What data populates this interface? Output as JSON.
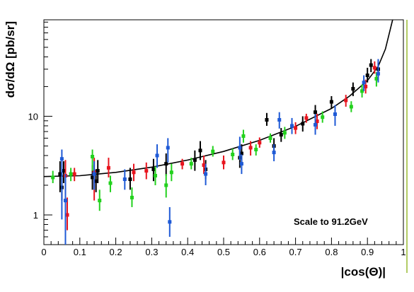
{
  "chart_data": {
    "type": "scatter",
    "xlabel": "|cos(Θ)|",
    "ylabel": "dσ/dΩ [pb/sr]",
    "annotation": "Scale to 91.2GeV",
    "xlim": [
      0,
      1
    ],
    "ylim": [
      0.5,
      95
    ],
    "y_scale": "log",
    "grid": false,
    "x_ticks": [
      "0",
      "0.1",
      "0.2",
      "0.3",
      "0.4",
      "0.5",
      "0.6",
      "0.7",
      "0.8",
      "0.9",
      "1"
    ],
    "x_tick_values": [
      0,
      0.1,
      0.2,
      0.3,
      0.4,
      0.5,
      0.6,
      0.7,
      0.8,
      0.9,
      1.0
    ],
    "y_ticks": [
      "1",
      "10"
    ],
    "y_tick_values": [
      1,
      10
    ],
    "colors": {
      "black": "#000000",
      "red": "#e8141e",
      "green": "#22d11d",
      "blue": "#1f5ad6",
      "curve": "#000000",
      "right_edge": "#99bb33"
    },
    "curve": {
      "description_points_x": [
        0.0,
        0.1,
        0.2,
        0.3,
        0.4,
        0.5,
        0.6,
        0.7,
        0.8,
        0.85,
        0.9,
        0.93,
        0.95,
        0.97
      ],
      "description_points_y": [
        2.45,
        2.5,
        2.7,
        3.05,
        3.6,
        4.4,
        5.7,
        7.9,
        12.0,
        16.0,
        23.0,
        32.0,
        48.0,
        95.0
      ]
    },
    "series": [
      {
        "color": "black",
        "points": [
          {
            "x": 0.045,
            "y": 2.6,
            "lo": 1.7,
            "hi": 3.5
          },
          {
            "x": 0.05,
            "y": 1.9,
            "lo": 1.4,
            "hi": 2.6
          },
          {
            "x": 0.055,
            "y": 2.8,
            "lo": 2.1,
            "hi": 3.5
          },
          {
            "x": 0.135,
            "y": 2.4,
            "lo": 1.8,
            "hi": 3.2
          },
          {
            "x": 0.145,
            "y": 2.2,
            "lo": 1.7,
            "hi": 2.9
          },
          {
            "x": 0.15,
            "y": 2.8,
            "lo": 2.1,
            "hi": 3.6
          },
          {
            "x": 0.24,
            "y": 2.3,
            "lo": 1.8,
            "hi": 3.0
          },
          {
            "x": 0.305,
            "y": 2.9,
            "lo": 2.2,
            "hi": 3.7
          },
          {
            "x": 0.34,
            "y": 3.3,
            "lo": 2.5,
            "hi": 4.2
          },
          {
            "x": 0.42,
            "y": 3.6,
            "lo": 2.8,
            "hi": 4.5
          },
          {
            "x": 0.435,
            "y": 4.5,
            "lo": 3.6,
            "hi": 5.6
          },
          {
            "x": 0.45,
            "y": 2.9,
            "lo": 2.3,
            "hi": 3.6
          },
          {
            "x": 0.545,
            "y": 3.8,
            "lo": 3.0,
            "hi": 4.8
          },
          {
            "x": 0.55,
            "y": 4.2,
            "lo": 3.2,
            "hi": 5.2
          },
          {
            "x": 0.62,
            "y": 9.2,
            "lo": 8.0,
            "hi": 10.8
          },
          {
            "x": 0.64,
            "y": 5.0,
            "lo": 4.2,
            "hi": 6.0
          },
          {
            "x": 0.66,
            "y": 6.5,
            "lo": 5.5,
            "hi": 7.6
          },
          {
            "x": 0.72,
            "y": 8.4,
            "lo": 7.0,
            "hi": 10.0
          },
          {
            "x": 0.755,
            "y": 11.0,
            "lo": 9.2,
            "hi": 13.0
          },
          {
            "x": 0.8,
            "y": 14.0,
            "lo": 12.0,
            "hi": 16.0
          },
          {
            "x": 0.86,
            "y": 19.0,
            "lo": 16.0,
            "hi": 22.0
          },
          {
            "x": 0.9,
            "y": 26.0,
            "lo": 22.0,
            "hi": 31.0
          },
          {
            "x": 0.91,
            "y": 33.0,
            "lo": 28.0,
            "hi": 38.0
          },
          {
            "x": 0.93,
            "y": 30.0,
            "lo": 25.0,
            "hi": 35.0
          }
        ]
      },
      {
        "color": "red",
        "points": [
          {
            "x": 0.06,
            "y": 2.5,
            "lo": 1.6,
            "hi": 3.6
          },
          {
            "x": 0.065,
            "y": 1.0,
            "lo": 0.7,
            "hi": 1.5
          },
          {
            "x": 0.085,
            "y": 2.6,
            "lo": 2.2,
            "hi": 3.0
          },
          {
            "x": 0.14,
            "y": 2.7,
            "lo": 1.4,
            "hi": 3.8
          },
          {
            "x": 0.18,
            "y": 3.0,
            "lo": 2.4,
            "hi": 3.8
          },
          {
            "x": 0.25,
            "y": 2.7,
            "lo": 2.2,
            "hi": 3.3
          },
          {
            "x": 0.285,
            "y": 2.8,
            "lo": 2.3,
            "hi": 3.4
          },
          {
            "x": 0.385,
            "y": 3.3,
            "lo": 2.9,
            "hi": 3.7
          },
          {
            "x": 0.445,
            "y": 3.2,
            "lo": 2.6,
            "hi": 4.0
          },
          {
            "x": 0.5,
            "y": 3.4,
            "lo": 2.9,
            "hi": 4.0
          },
          {
            "x": 0.575,
            "y": 4.8,
            "lo": 4.0,
            "hi": 5.6
          },
          {
            "x": 0.6,
            "y": 5.4,
            "lo": 4.8,
            "hi": 6.1
          },
          {
            "x": 0.7,
            "y": 7.6,
            "lo": 6.6,
            "hi": 8.7
          },
          {
            "x": 0.73,
            "y": 9.6,
            "lo": 8.6,
            "hi": 10.6
          },
          {
            "x": 0.76,
            "y": 8.9,
            "lo": 7.4,
            "hi": 10.6
          },
          {
            "x": 0.84,
            "y": 14.5,
            "lo": 12.5,
            "hi": 16.5
          },
          {
            "x": 0.895,
            "y": 20.0,
            "lo": 17.0,
            "hi": 23.5
          },
          {
            "x": 0.92,
            "y": 31.0,
            "lo": 27.0,
            "hi": 36.0
          }
        ]
      },
      {
        "color": "green",
        "points": [
          {
            "x": 0.025,
            "y": 2.4,
            "lo": 2.1,
            "hi": 2.8
          },
          {
            "x": 0.075,
            "y": 2.6,
            "lo": 2.2,
            "hi": 3.0
          },
          {
            "x": 0.135,
            "y": 3.9,
            "lo": 2.8,
            "hi": 4.6
          },
          {
            "x": 0.155,
            "y": 1.4,
            "lo": 1.1,
            "hi": 1.8
          },
          {
            "x": 0.185,
            "y": 2.1,
            "lo": 1.7,
            "hi": 2.5
          },
          {
            "x": 0.245,
            "y": 1.5,
            "lo": 1.2,
            "hi": 1.9
          },
          {
            "x": 0.31,
            "y": 2.5,
            "lo": 2.0,
            "hi": 3.1
          },
          {
            "x": 0.34,
            "y": 2.0,
            "lo": 1.5,
            "hi": 2.6
          },
          {
            "x": 0.355,
            "y": 2.7,
            "lo": 2.2,
            "hi": 3.3
          },
          {
            "x": 0.41,
            "y": 3.3,
            "lo": 2.9,
            "hi": 3.8
          },
          {
            "x": 0.47,
            "y": 4.4,
            "lo": 3.9,
            "hi": 5.0
          },
          {
            "x": 0.525,
            "y": 4.1,
            "lo": 3.6,
            "hi": 4.7
          },
          {
            "x": 0.555,
            "y": 6.3,
            "lo": 5.4,
            "hi": 7.3
          },
          {
            "x": 0.59,
            "y": 4.6,
            "lo": 4.0,
            "hi": 5.2
          },
          {
            "x": 0.63,
            "y": 6.0,
            "lo": 5.4,
            "hi": 6.7
          },
          {
            "x": 0.67,
            "y": 6.8,
            "lo": 5.9,
            "hi": 7.8
          },
          {
            "x": 0.775,
            "y": 9.8,
            "lo": 8.6,
            "hi": 11.2
          },
          {
            "x": 0.855,
            "y": 12.5,
            "lo": 11.0,
            "hi": 14.2
          },
          {
            "x": 0.885,
            "y": 18.0,
            "lo": 15.5,
            "hi": 21.0
          },
          {
            "x": 0.925,
            "y": 24.0,
            "lo": 20.0,
            "hi": 28.0
          }
        ]
      },
      {
        "color": "blue",
        "points": [
          {
            "x": 0.05,
            "y": 3.7,
            "lo": 0.9,
            "hi": 4.6
          },
          {
            "x": 0.06,
            "y": 1.4,
            "lo": 0.5,
            "hi": 2.6
          },
          {
            "x": 0.14,
            "y": 2.6,
            "lo": 1.8,
            "hi": 3.5
          },
          {
            "x": 0.225,
            "y": 2.3,
            "lo": 1.8,
            "hi": 2.9
          },
          {
            "x": 0.315,
            "y": 4.0,
            "lo": 3.0,
            "hi": 5.2
          },
          {
            "x": 0.345,
            "y": 4.8,
            "lo": 3.4,
            "hi": 6.0
          },
          {
            "x": 0.35,
            "y": 0.85,
            "lo": 0.6,
            "hi": 1.2
          },
          {
            "x": 0.45,
            "y": 2.6,
            "lo": 2.0,
            "hi": 3.3
          },
          {
            "x": 0.545,
            "y": 4.8,
            "lo": 3.6,
            "hi": 6.2
          },
          {
            "x": 0.55,
            "y": 3.3,
            "lo": 2.6,
            "hi": 4.1
          },
          {
            "x": 0.64,
            "y": 4.3,
            "lo": 3.5,
            "hi": 5.2
          },
          {
            "x": 0.655,
            "y": 9.2,
            "lo": 7.5,
            "hi": 11.0
          },
          {
            "x": 0.69,
            "y": 8.0,
            "lo": 6.6,
            "hi": 9.6
          },
          {
            "x": 0.755,
            "y": 8.2,
            "lo": 6.5,
            "hi": 10.5
          },
          {
            "x": 0.81,
            "y": 10.5,
            "lo": 8.0,
            "hi": 13.0
          },
          {
            "x": 0.89,
            "y": 22.0,
            "lo": 18.0,
            "hi": 26.0
          },
          {
            "x": 0.93,
            "y": 27.0,
            "lo": 22.0,
            "hi": 38.0
          }
        ]
      }
    ]
  }
}
